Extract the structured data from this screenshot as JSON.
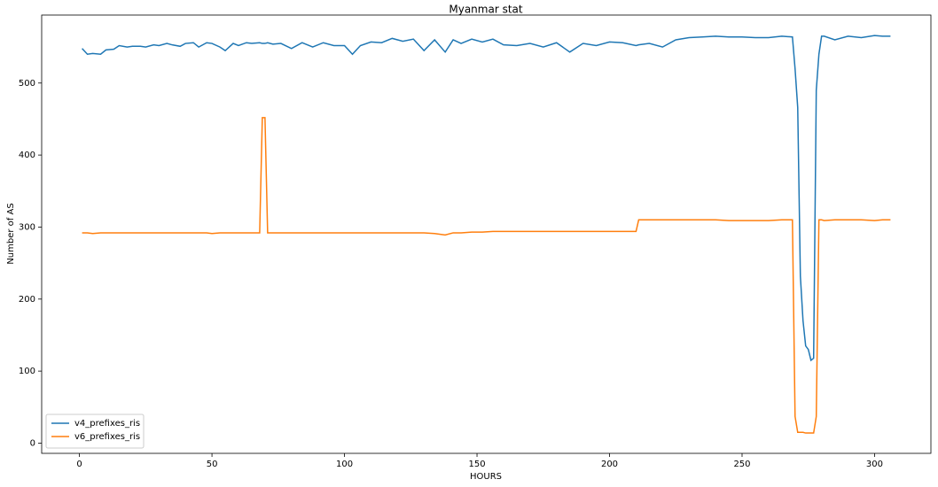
{
  "chart_data": {
    "type": "line",
    "title": "Myanmar stat",
    "xlabel": "HOURS",
    "ylabel": "Number of AS",
    "x": [
      1,
      3,
      5,
      8,
      10,
      13,
      15,
      18,
      20,
      23,
      25,
      28,
      30,
      33,
      35,
      38,
      40,
      43,
      45,
      48,
      50,
      53,
      55,
      58,
      60,
      63,
      65,
      68,
      69,
      70,
      71,
      73,
      76,
      80,
      84,
      88,
      92,
      96,
      100,
      103,
      106,
      110,
      114,
      118,
      122,
      126,
      130,
      134,
      138,
      141,
      144,
      148,
      152,
      156,
      160,
      165,
      170,
      175,
      180,
      185,
      190,
      195,
      200,
      205,
      210,
      211,
      215,
      220,
      225,
      230,
      235,
      240,
      245,
      250,
      255,
      260,
      265,
      269,
      270,
      271,
      272,
      273,
      274,
      275,
      276,
      277,
      278,
      279,
      280,
      281,
      285,
      290,
      295,
      300,
      303,
      306
    ],
    "series": [
      {
        "name": "v4_prefixes_ris",
        "color": "#1f77b4",
        "values": [
          548,
          540,
          541,
          540,
          546,
          547,
          552,
          550,
          551,
          551,
          550,
          553,
          552,
          555,
          553,
          551,
          555,
          556,
          550,
          556,
          555,
          550,
          545,
          555,
          552,
          556,
          555,
          556,
          555,
          555,
          556,
          554,
          555,
          548,
          556,
          550,
          556,
          552,
          552,
          540,
          552,
          557,
          556,
          562,
          558,
          561,
          545,
          560,
          543,
          560,
          555,
          561,
          557,
          561,
          553,
          552,
          555,
          550,
          556,
          543,
          555,
          552,
          557,
          556,
          552,
          553,
          555,
          550,
          560,
          563,
          564,
          565,
          564,
          564,
          563,
          563,
          565,
          564,
          520,
          466,
          232,
          170,
          135,
          130,
          115,
          118,
          490,
          540,
          565,
          565,
          560,
          565,
          563,
          566,
          565,
          565
        ]
      },
      {
        "name": "v6_prefixes_ris",
        "color": "#ff7f0e",
        "values": [
          292,
          292,
          291,
          292,
          292,
          292,
          292,
          292,
          292,
          292,
          292,
          292,
          292,
          292,
          292,
          292,
          292,
          292,
          292,
          292,
          291,
          292,
          292,
          292,
          292,
          292,
          292,
          292,
          452,
          452,
          292,
          292,
          292,
          292,
          292,
          292,
          292,
          292,
          292,
          292,
          292,
          292,
          292,
          292,
          292,
          292,
          292,
          291,
          289,
          292,
          292,
          293,
          293,
          294,
          294,
          294,
          294,
          294,
          294,
          294,
          294,
          294,
          294,
          294,
          294,
          310,
          310,
          310,
          310,
          310,
          310,
          310,
          309,
          309,
          309,
          309,
          310,
          310,
          37,
          15,
          15,
          15,
          14,
          14,
          14,
          14,
          37,
          310,
          310,
          309,
          310,
          310,
          310,
          309,
          310,
          310
        ]
      }
    ],
    "xlim": [
      -14.25,
      321.25
    ],
    "ylim": [
      -14.2,
      594.4
    ],
    "xticks": [
      0,
      50,
      100,
      150,
      200,
      250,
      300
    ],
    "yticks": [
      0,
      100,
      200,
      300,
      400,
      500
    ],
    "legend": "lower left"
  }
}
